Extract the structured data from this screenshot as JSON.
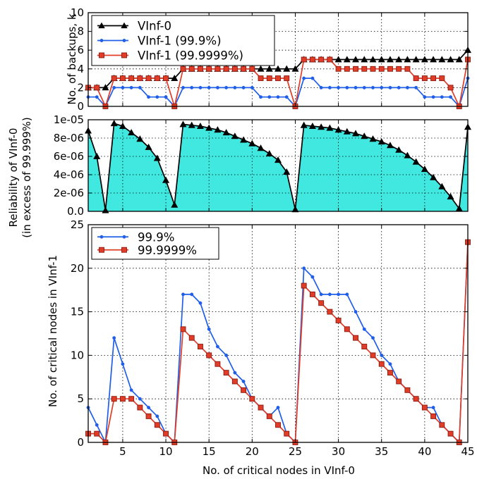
{
  "chart_data": [
    {
      "type": "line",
      "panel": "top",
      "ylabel": "No. of backups, k",
      "ylim": [
        0,
        10
      ],
      "yticks": [
        0,
        2,
        4,
        6,
        8,
        10
      ],
      "xlim": [
        1,
        45
      ],
      "grid": true,
      "legend_position": "top-left",
      "x": [
        1,
        2,
        3,
        4,
        5,
        6,
        7,
        8,
        9,
        10,
        11,
        12,
        13,
        14,
        15,
        16,
        17,
        18,
        19,
        20,
        21,
        22,
        23,
        24,
        25,
        26,
        27,
        28,
        29,
        30,
        31,
        32,
        33,
        34,
        35,
        36,
        37,
        38,
        39,
        40,
        41,
        42,
        43,
        44,
        45
      ],
      "series": [
        {
          "name": "VInf-0",
          "color": "#000000",
          "marker": "triangle",
          "values": [
            2,
            2,
            2,
            3,
            3,
            3,
            3,
            3,
            3,
            3,
            3,
            4,
            4,
            4,
            4,
            4,
            4,
            4,
            4,
            4,
            4,
            4,
            4,
            4,
            4,
            5,
            5,
            5,
            5,
            5,
            5,
            5,
            5,
            5,
            5,
            5,
            5,
            5,
            5,
            5,
            5,
            5,
            5,
            5,
            6
          ]
        },
        {
          "name": "VInf-1 (99.9%)",
          "color": "#1f5ee8",
          "marker": "dot",
          "values": [
            1,
            1,
            0,
            2,
            2,
            2,
            2,
            1,
            1,
            1,
            0,
            2,
            2,
            2,
            2,
            2,
            2,
            2,
            2,
            2,
            1,
            1,
            1,
            1,
            0,
            3,
            3,
            2,
            2,
            2,
            2,
            2,
            2,
            2,
            2,
            2,
            2,
            2,
            2,
            1,
            1,
            1,
            1,
            0,
            3
          ]
        },
        {
          "name": "VInf-1 (99.9999%)",
          "color": "#e03c28",
          "marker": "square",
          "values": [
            2,
            2,
            0,
            3,
            3,
            3,
            3,
            3,
            3,
            3,
            0,
            4,
            4,
            4,
            4,
            4,
            4,
            4,
            4,
            4,
            3,
            3,
            3,
            3,
            0,
            5,
            5,
            5,
            5,
            4,
            4,
            4,
            4,
            4,
            4,
            4,
            4,
            4,
            3,
            3,
            3,
            3,
            2,
            0,
            5
          ]
        }
      ]
    },
    {
      "type": "area",
      "panel": "middle",
      "ylabel_lines": [
        "Reliability of VInf-0",
        "(in excess of 99.999%)"
      ],
      "ylim": [
        0,
        1e-05
      ],
      "ytick_labels": [
        "0.0",
        "2e-06",
        "4e-06",
        "6e-06",
        "8e-06",
        "1e-05"
      ],
      "yticks": [
        0,
        2e-06,
        4e-06,
        6e-06,
        8e-06,
        1e-05
      ],
      "xlim": [
        1,
        45
      ],
      "grid": true,
      "fill_color": "#40e8e0",
      "x": [
        1,
        2,
        3,
        4,
        5,
        6,
        7,
        8,
        9,
        10,
        11,
        12,
        13,
        14,
        15,
        16,
        17,
        18,
        19,
        20,
        21,
        22,
        23,
        24,
        25,
        26,
        27,
        28,
        29,
        30,
        31,
        32,
        33,
        34,
        35,
        36,
        37,
        38,
        39,
        40,
        41,
        42,
        43,
        44,
        45
      ],
      "series": [
        {
          "name": "VInf-0",
          "color": "#000000",
          "marker": "triangle",
          "values": [
            8.8e-06,
            6e-06,
            1e-07,
            9.6e-06,
            9.3e-06,
            8.6e-06,
            7.9e-06,
            7e-06,
            5.8e-06,
            3.4e-06,
            7e-07,
            9.5e-06,
            9.4e-06,
            9.3e-06,
            9.1e-06,
            8.9e-06,
            8.6e-06,
            8.2e-06,
            7.8e-06,
            7.4e-06,
            6.9e-06,
            6.3e-06,
            5.6e-06,
            4.3e-06,
            2e-07,
            9.4e-06,
            9.3e-06,
            9.2e-06,
            9.1e-06,
            8.9e-06,
            8.7e-06,
            8.5e-06,
            8.2e-06,
            7.9e-06,
            7.6e-06,
            7.2e-06,
            6.7e-06,
            6.1e-06,
            5.4e-06,
            4.6e-06,
            3.7e-06,
            2.7e-06,
            1.6e-06,
            3e-07,
            9.2e-06
          ]
        }
      ]
    },
    {
      "type": "line",
      "panel": "bottom",
      "xlabel": "No. of critical nodes in VInf-0",
      "ylabel": "No. of critical nodes in VInf-1",
      "ylim": [
        0,
        25
      ],
      "yticks": [
        0,
        5,
        10,
        15,
        20,
        25
      ],
      "xlim": [
        1,
        45
      ],
      "xticks": [
        5,
        10,
        15,
        20,
        25,
        30,
        35,
        40,
        45
      ],
      "grid": true,
      "legend_position": "top-left",
      "x": [
        1,
        2,
        3,
        4,
        5,
        6,
        7,
        8,
        9,
        10,
        11,
        12,
        13,
        14,
        15,
        16,
        17,
        18,
        19,
        20,
        21,
        22,
        23,
        24,
        25,
        26,
        27,
        28,
        29,
        30,
        31,
        32,
        33,
        34,
        35,
        36,
        37,
        38,
        39,
        40,
        41,
        42,
        43,
        44,
        45
      ],
      "series": [
        {
          "name": "99.9%",
          "color": "#1f5ee8",
          "marker": "dot",
          "values": [
            4,
            2,
            0,
            12,
            9,
            6,
            5,
            4,
            3,
            1,
            0,
            17,
            17,
            16,
            13,
            11,
            10,
            8,
            7,
            5,
            4,
            3,
            4,
            1,
            0,
            20,
            19,
            17,
            17,
            17,
            17,
            15,
            13,
            12,
            10,
            9,
            7,
            6,
            5,
            4,
            4,
            2,
            1,
            0,
            23
          ]
        },
        {
          "name": "99.9999%",
          "color": "#e03c28",
          "marker": "square",
          "values": [
            1,
            1,
            0,
            5,
            5,
            5,
            4,
            3,
            2,
            1,
            0,
            13,
            12,
            11,
            10,
            9,
            8,
            7,
            6,
            5,
            4,
            3,
            2,
            1,
            0,
            18,
            17,
            16,
            15,
            14,
            13,
            12,
            11,
            10,
            9,
            8,
            7,
            6,
            5,
            4,
            3,
            2,
            1,
            0,
            23
          ]
        }
      ]
    }
  ]
}
